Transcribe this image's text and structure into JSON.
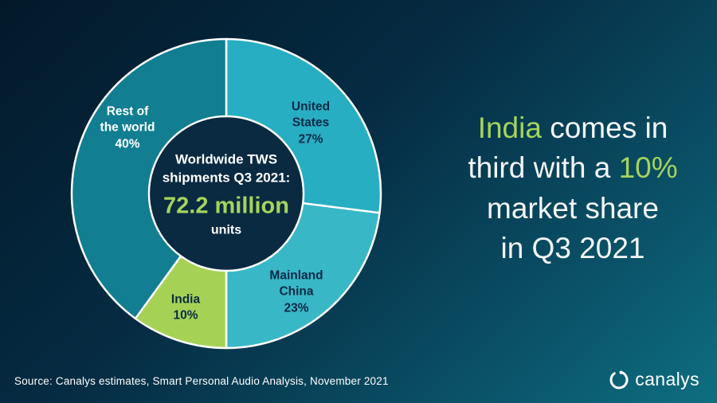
{
  "colors": {
    "accent_green": "#a5d45c",
    "label_dark": "#0b2a44",
    "center_circle": "#092a41",
    "slice_divider": "#ffffff"
  },
  "chart_data": {
    "type": "pie",
    "donut": true,
    "title": "Worldwide TWS shipments Q3 2021: 72.2 million units",
    "total_value": "72.2 million",
    "total_units": "units",
    "start_angle": 0,
    "slices": [
      {
        "label": "United States",
        "value": 27,
        "color": "#27aec3"
      },
      {
        "label": "Mainland China",
        "value": 23,
        "color": "#38b7c7"
      },
      {
        "label": "India",
        "value": 10,
        "color": "#a5d254"
      },
      {
        "label": "Rest of the world",
        "value": 40,
        "color": "#117e92"
      }
    ]
  },
  "slice_display": {
    "united_states": "United\nStates\n27%",
    "mainland_china": "Mainland\nChina\n23%",
    "india": "India\n10%",
    "rest_of_world": "Rest of\nthe world\n40%"
  },
  "donut_center": {
    "line1": "Worldwide TWS",
    "line2": "shipments Q3 2021:",
    "value": "72.2 million",
    "units": "units"
  },
  "headline": {
    "segments": [
      {
        "text": "India",
        "accent": true
      },
      {
        "text": " comes in\nthird with a ",
        "accent": false
      },
      {
        "text": "10%",
        "accent": true
      },
      {
        "text": "\nmarket share\nin Q3 2021",
        "accent": false
      }
    ]
  },
  "source": "Source: Canalys estimates, Smart Personal Audio Analysis, November 2021",
  "logo": {
    "text": "canalys"
  }
}
